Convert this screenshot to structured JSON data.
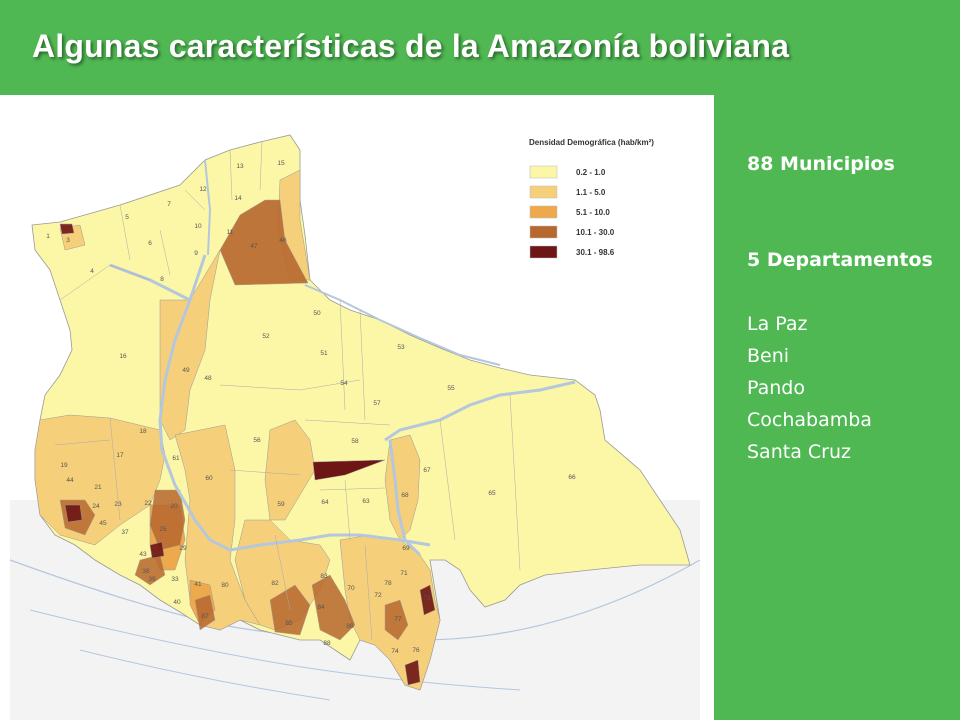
{
  "title": "Algunas características de la Amazonía boliviana",
  "legend": {
    "title": "Densidad Demográfica (hab/km²)",
    "classes": [
      {
        "label": "0.2 - 1.0",
        "color": "#fbf7a6"
      },
      {
        "label": "1.1 - 5.0",
        "color": "#f6cf7b"
      },
      {
        "label": "5.1 - 10.0",
        "color": "#eea94d"
      },
      {
        "label": "10.1 - 30.0",
        "color": "#b7682f"
      },
      {
        "label": "30.1 - 98.6",
        "color": "#6e1515"
      }
    ]
  },
  "municipality_labels": [
    "1",
    "3",
    "4",
    "5",
    "6",
    "7",
    "8",
    "9",
    "10",
    "11",
    "12",
    "13",
    "14",
    "15",
    "16",
    "17",
    "18",
    "19",
    "20",
    "21",
    "22",
    "23",
    "24",
    "25",
    "29",
    "33",
    "37",
    "38",
    "39",
    "40",
    "41",
    "43",
    "44",
    "45",
    "46",
    "47",
    "48",
    "49",
    "50",
    "51",
    "52",
    "53",
    "54",
    "55",
    "56",
    "57",
    "58",
    "59",
    "60",
    "61",
    "63",
    "64",
    "65",
    "66",
    "67",
    "68",
    "69",
    "70",
    "71",
    "72",
    "73",
    "74",
    "76",
    "77",
    "78",
    "80",
    "82",
    "83",
    "84",
    "85",
    "86",
    "87",
    "88"
  ],
  "info": {
    "municipios": "88 Municipios",
    "departamentos": "5 Departamentos",
    "list": [
      "La Paz",
      "Beni",
      "Pando",
      "Cochabamba",
      "Santa Cruz"
    ]
  },
  "colors": {
    "background_green": "#4fb852",
    "river_blue": "#b4c7dc",
    "neighbor_gray": "#ececec"
  }
}
